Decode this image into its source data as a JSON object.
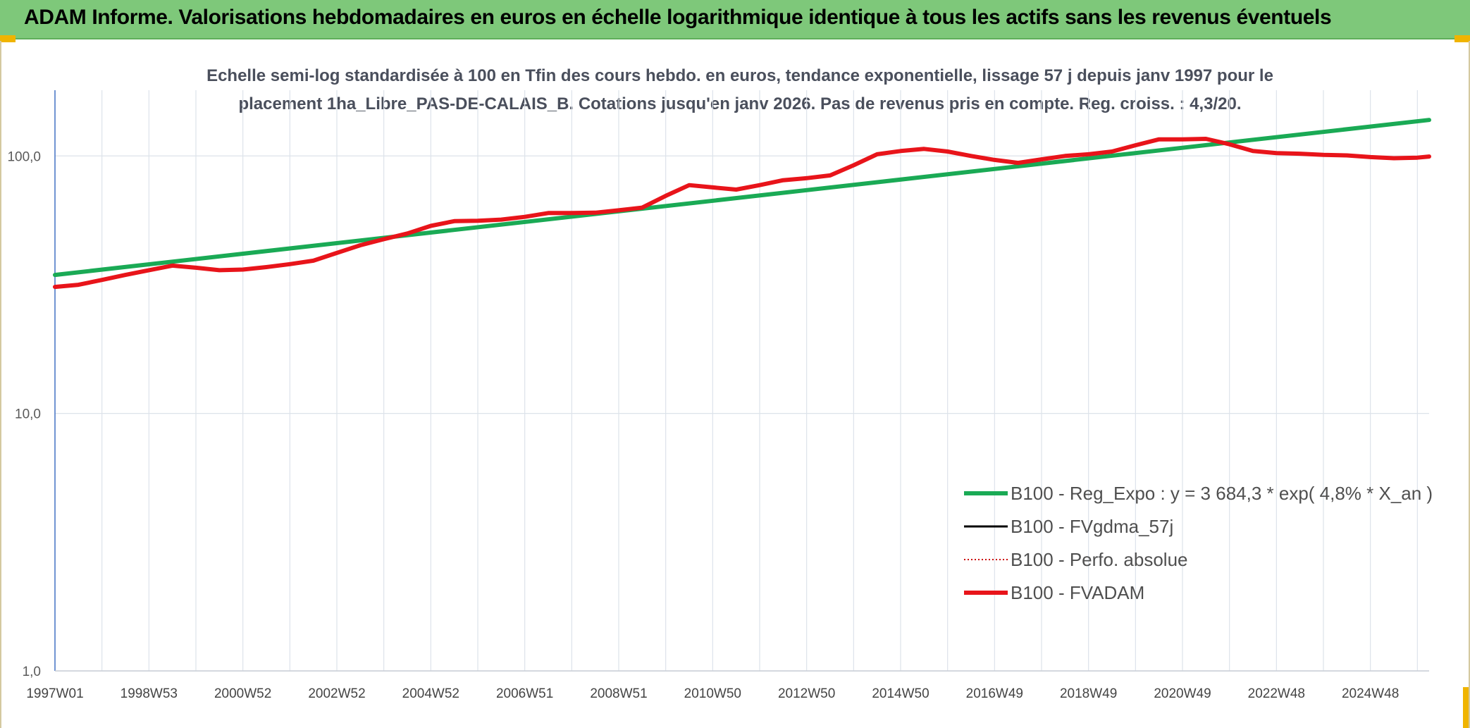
{
  "banner": {
    "title": "ADAM Informe. Valorisations hebdomadaires en euros en échelle logarithmique identique à tous les actifs sans les revenus éventuels"
  },
  "colors": {
    "banner_bg": "#7ec87a",
    "accent_corner": "#f0b400",
    "regression": "#1aaa55",
    "fvadam": "#e8141a",
    "fvgdma": "#000000",
    "perfo": "#cc0000"
  },
  "chart_data": {
    "type": "line",
    "title": "Echelle semi-log standardisée à 100 en Tfin des cours hebdo. en euros, tendance exponentielle, lissage 57 j depuis janv 1997 pour le placement 1ha_Libre_PAS-DE-CALAIS_B. Cotations jusqu'en janv 2026. Pas de revenus pris en compte. Reg. croiss. : 4,3/20.",
    "xlabel": "",
    "ylabel": "",
    "y_scale": "log",
    "ylim": [
      1,
      180
    ],
    "xlim": [
      1997.0,
      2026.25
    ],
    "grid": true,
    "legend_position": "bottom-right",
    "y_ticks": [
      {
        "value": 1,
        "label": "1,0"
      },
      {
        "value": 10,
        "label": "10,0"
      },
      {
        "value": 100,
        "label": "100,0"
      }
    ],
    "x_ticks": [
      {
        "value": 1997.0,
        "label": "1997W01"
      },
      {
        "value": 1999.0,
        "label": "1998W53"
      },
      {
        "value": 2001.0,
        "label": "2000W52"
      },
      {
        "value": 2003.0,
        "label": "2002W52"
      },
      {
        "value": 2005.0,
        "label": "2004W52"
      },
      {
        "value": 2007.0,
        "label": "2006W51"
      },
      {
        "value": 2009.0,
        "label": "2008W51"
      },
      {
        "value": 2011.0,
        "label": "2010W50"
      },
      {
        "value": 2013.0,
        "label": "2012W50"
      },
      {
        "value": 2015.0,
        "label": "2014W50"
      },
      {
        "value": 2017.0,
        "label": "2016W49"
      },
      {
        "value": 2019.0,
        "label": "2018W49"
      },
      {
        "value": 2021.0,
        "label": "2020W49"
      },
      {
        "value": 2023.0,
        "label": "2022W48"
      },
      {
        "value": 2025.0,
        "label": "2024W48"
      }
    ],
    "series": [
      {
        "name": "B100 - Reg_Expo : y = 3 684,3 * exp( 4,8% *  X_an )",
        "style": "solid-thick",
        "color": "#1aaa55",
        "x": [
          1997.0,
          2026.25
        ],
        "y": [
          34.5,
          138.0
        ]
      },
      {
        "name": "B100 - FVgdma_57j",
        "style": "solid-thin",
        "color": "#000000",
        "x": [],
        "y": []
      },
      {
        "name": "B100 - Perfo. absolue",
        "style": "dotted",
        "color": "#cc0000",
        "x": [],
        "y": []
      },
      {
        "name": "B100 - FVADAM",
        "style": "solid-thick",
        "color": "#e8141a",
        "x": [
          1997.0,
          1997.5,
          1998.0,
          1998.5,
          1999.0,
          1999.5,
          2000.0,
          2000.5,
          2001.0,
          2001.5,
          2002.0,
          2002.5,
          2003.0,
          2003.5,
          2004.0,
          2004.5,
          2005.0,
          2005.5,
          2006.0,
          2006.5,
          2007.0,
          2007.5,
          2008.0,
          2008.5,
          2009.0,
          2009.5,
          2010.0,
          2010.5,
          2011.0,
          2011.5,
          2012.0,
          2012.5,
          2013.0,
          2013.5,
          2014.0,
          2014.5,
          2015.0,
          2015.5,
          2016.0,
          2016.5,
          2017.0,
          2017.5,
          2018.0,
          2018.5,
          2019.0,
          2019.5,
          2020.0,
          2020.5,
          2021.0,
          2021.5,
          2022.0,
          2022.5,
          2023.0,
          2023.5,
          2024.0,
          2024.5,
          2025.0,
          2025.5,
          2026.0,
          2026.25
        ],
        "y": [
          31.0,
          31.6,
          33.0,
          34.5,
          36.0,
          37.5,
          36.8,
          36.0,
          36.2,
          37.0,
          38.0,
          39.2,
          42.0,
          45.0,
          47.5,
          50.0,
          53.5,
          55.8,
          56.0,
          56.6,
          58.0,
          60.0,
          60.0,
          60.2,
          61.5,
          63.0,
          70.0,
          77.0,
          75.5,
          74.0,
          77.0,
          80.5,
          82.0,
          84.0,
          92.0,
          101.5,
          104.5,
          106.5,
          104.0,
          100.0,
          96.5,
          94.0,
          97.0,
          100.0,
          101.5,
          104.0,
          110.0,
          116.0,
          116.0,
          116.5,
          111.0,
          104.5,
          102.5,
          102.0,
          101.0,
          100.5,
          99.0,
          98.0,
          98.5,
          99.5
        ]
      }
    ]
  }
}
